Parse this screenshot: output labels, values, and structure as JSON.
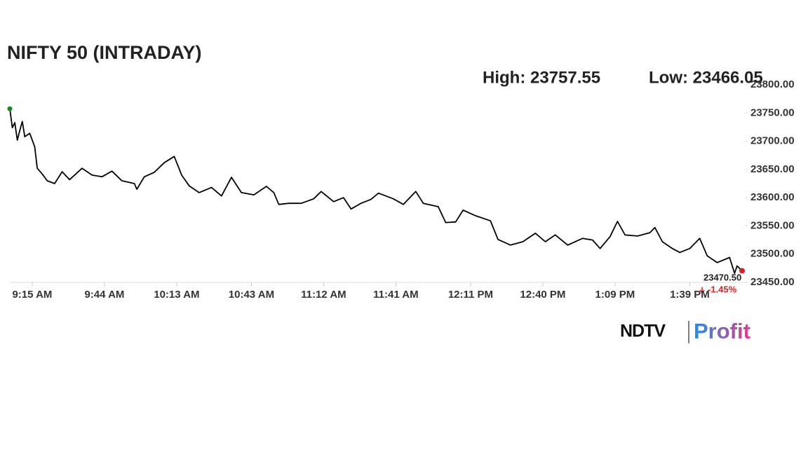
{
  "chart_data": {
    "type": "line",
    "title": "NIFTY 50 (INTRADAY)",
    "annotations": {
      "high": "High: 23757.55",
      "low": "Low: 23466.05",
      "last_price": "23470.50",
      "change": "-1.45%"
    },
    "logo": {
      "left": "NDTV",
      "right": "Profit"
    },
    "color": "#000000",
    "start_color": "#1a8a1a",
    "end_color": "#e02020",
    "x": [
      "09:06",
      "09:07",
      "09:08",
      "09:09",
      "09:10",
      "09:11",
      "09:12",
      "09:14",
      "09:16",
      "09:17",
      "09:19",
      "09:21",
      "09:24",
      "09:27",
      "09:30",
      "09:35",
      "09:39",
      "09:43",
      "09:47",
      "09:51",
      "09:56",
      "09:57",
      "10:00",
      "10:04",
      "10:08",
      "10:12",
      "10:15",
      "10:18",
      "10:22",
      "10:27",
      "10:31",
      "10:35",
      "10:39",
      "10:44",
      "10:49",
      "10:52",
      "10:54",
      "10:58",
      "11:03",
      "11:08",
      "11:11",
      "11:16",
      "11:20",
      "11:23",
      "11:27",
      "11:31",
      "11:34",
      "11:40",
      "11:44",
      "11:49",
      "11:52",
      "11:58",
      "12:01",
      "12:05",
      "12:08",
      "12:13",
      "12:19",
      "12:22",
      "12:27",
      "12:32",
      "12:37",
      "12:41",
      "12:45",
      "12:50",
      "12:56",
      "13:00",
      "13:03",
      "13:07",
      "13:10",
      "13:13",
      "13:18",
      "13:23",
      "13:25",
      "13:28",
      "13:32",
      "13:35",
      "13:39",
      "13:43",
      "13:46",
      "13:50",
      "13:55",
      "13:57",
      "13:58",
      "14:00"
    ],
    "values": [
      23757.55,
      23724,
      23733,
      23702,
      23719,
      23735,
      23708,
      23714,
      23690,
      23652,
      23642,
      23630,
      23625,
      23646,
      23632,
      23652,
      23640,
      23637,
      23647,
      23630,
      23625,
      23615,
      23637,
      23645,
      23662,
      23673,
      23640,
      23621,
      23609,
      23618,
      23603,
      23636,
      23609,
      23605,
      23620,
      23609,
      23588,
      23590,
      23590,
      23598,
      23611,
      23593,
      23600,
      23580,
      23590,
      23597,
      23608,
      23598,
      23588,
      23611,
      23590,
      23584,
      23556,
      23557,
      23578,
      23568,
      23559,
      23526,
      23516,
      23522,
      23537,
      23522,
      23534,
      23516,
      23528,
      23525,
      23510,
      23531,
      23558,
      23534,
      23532,
      23538,
      23547,
      23522,
      23510,
      23503,
      23510,
      23528,
      23497,
      23485,
      23494,
      23466.05,
      23479,
      23470.5
    ],
    "xlim": [
      "09:06",
      "14:00"
    ],
    "xticks": [
      {
        "value": "09:15",
        "label": "9:15 AM"
      },
      {
        "value": "09:44",
        "label": "9:44 AM"
      },
      {
        "value": "10:13",
        "label": "10:13 AM"
      },
      {
        "value": "10:43",
        "label": "10:43 AM"
      },
      {
        "value": "11:12",
        "label": "11:12 AM"
      },
      {
        "value": "11:41",
        "label": "11:41 AM"
      },
      {
        "value": "12:11",
        "label": "12:11 PM"
      },
      {
        "value": "12:40",
        "label": "12:40 PM"
      },
      {
        "value": "13:09",
        "label": "1:09 PM"
      },
      {
        "value": "13:39",
        "label": "1:39 PM"
      }
    ],
    "ylim": [
      23450,
      23800
    ],
    "yticks": [
      {
        "value": 23450,
        "label": "23450.00"
      },
      {
        "value": 23500,
        "label": "23500.00"
      },
      {
        "value": 23550,
        "label": "23550.00"
      },
      {
        "value": 23600,
        "label": "23600.00"
      },
      {
        "value": 23650,
        "label": "23650.00"
      },
      {
        "value": 23700,
        "label": "23700.00"
      },
      {
        "value": 23750,
        "label": "23750.00"
      },
      {
        "value": 23800,
        "label": "23800.00"
      }
    ],
    "grid": false
  }
}
